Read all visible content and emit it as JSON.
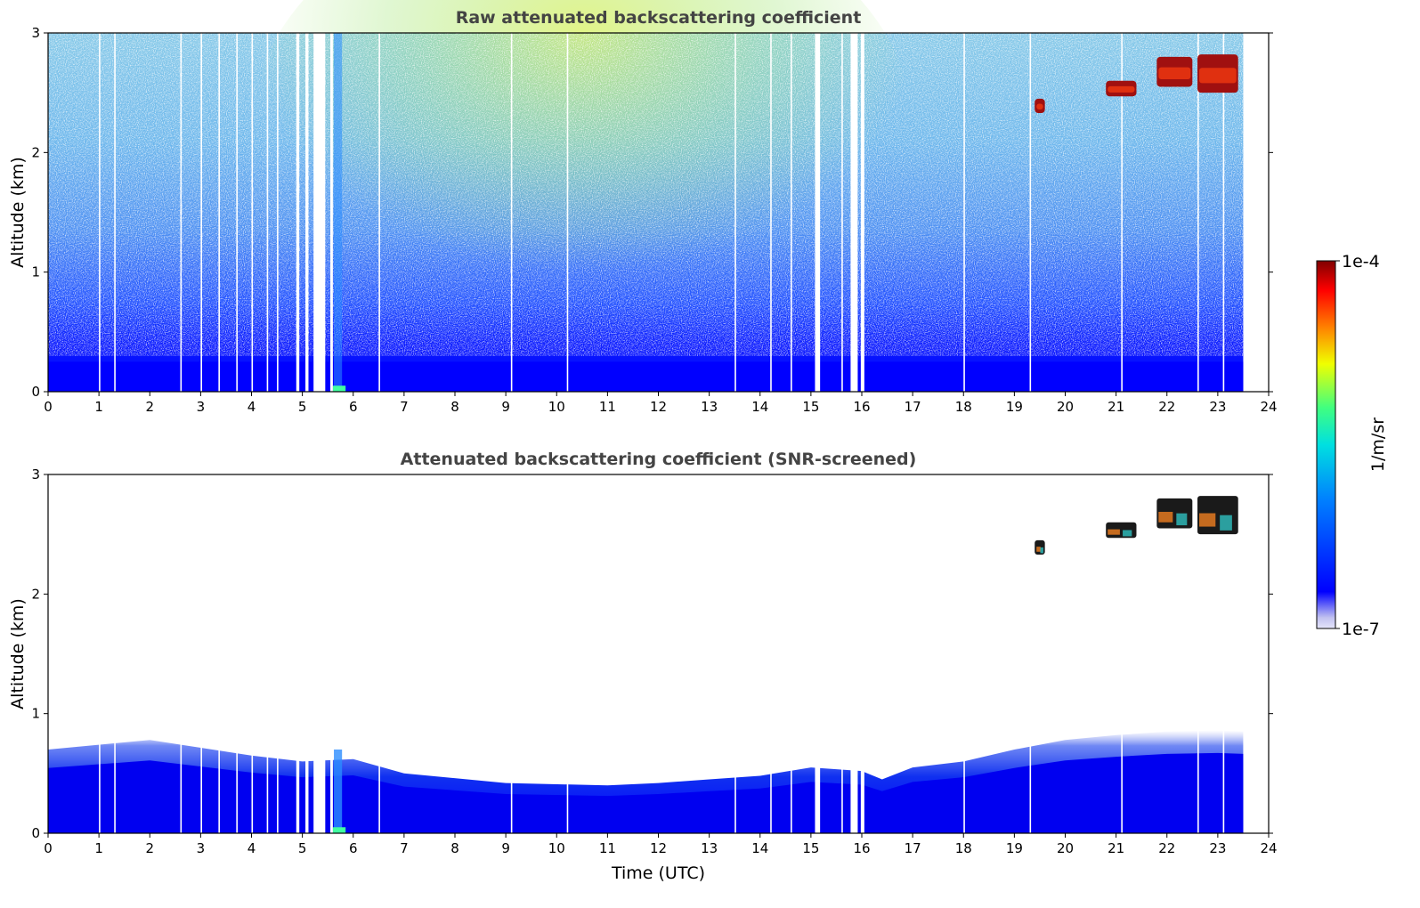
{
  "chart_data": [
    {
      "type": "heatmap",
      "title": "Raw attenuated backscattering coefficient",
      "xlabel": "",
      "ylabel": "Altitude (km)",
      "xlim": [
        0,
        24
      ],
      "ylim": [
        0,
        3
      ],
      "xticks": [
        "0",
        "1",
        "2",
        "3",
        "4",
        "5",
        "6",
        "7",
        "8",
        "9",
        "10",
        "11",
        "12",
        "13",
        "14",
        "15",
        "16",
        "17",
        "18",
        "19",
        "20",
        "21",
        "22",
        "23",
        "24"
      ],
      "yticks": [
        "0",
        "1",
        "2",
        "3"
      ],
      "data_end_time": 23.5,
      "no_data_gaps": [
        [
          4.88,
          4.94
        ],
        [
          5.06,
          5.12
        ],
        [
          5.22,
          5.45
        ],
        [
          5.55,
          5.6
        ],
        [
          15.08,
          15.18
        ],
        [
          15.78,
          15.92
        ],
        [
          15.98,
          16.05
        ]
      ],
      "cloud_layers": [
        {
          "t_start": 19.4,
          "t_end": 19.6,
          "alt_bottom": 2.33,
          "alt_top": 2.45
        },
        {
          "t_start": 20.8,
          "t_end": 21.4,
          "alt_bottom": 2.47,
          "alt_top": 2.6
        },
        {
          "t_start": 21.8,
          "t_end": 22.5,
          "alt_bottom": 2.55,
          "alt_top": 2.8
        },
        {
          "t_start": 22.6,
          "t_end": 23.4,
          "alt_bottom": 2.5,
          "alt_top": 2.82
        }
      ]
    },
    {
      "type": "heatmap",
      "title": "Attenuated backscattering coefficient (SNR-screened)",
      "xlabel": "Time (UTC)",
      "ylabel": "Altitude (km)",
      "xlim": [
        0,
        24
      ],
      "ylim": [
        0,
        3
      ],
      "xticks": [
        "0",
        "1",
        "2",
        "3",
        "4",
        "5",
        "6",
        "7",
        "8",
        "9",
        "10",
        "11",
        "12",
        "13",
        "14",
        "15",
        "16",
        "17",
        "18",
        "19",
        "20",
        "21",
        "22",
        "23",
        "24"
      ],
      "yticks": [
        "0",
        "1",
        "2",
        "3"
      ],
      "data_end_time": 23.5,
      "boundary_layer_top": [
        [
          0,
          0.7
        ],
        [
          2,
          0.78
        ],
        [
          4,
          0.65
        ],
        [
          5,
          0.6
        ],
        [
          6,
          0.62
        ],
        [
          7,
          0.5
        ],
        [
          9,
          0.42
        ],
        [
          11,
          0.4
        ],
        [
          12,
          0.42
        ],
        [
          13,
          0.45
        ],
        [
          14,
          0.48
        ],
        [
          15,
          0.55
        ],
        [
          16,
          0.52
        ],
        [
          16.4,
          0.45
        ],
        [
          17,
          0.55
        ],
        [
          18,
          0.6
        ],
        [
          19,
          0.7
        ],
        [
          20,
          0.78
        ],
        [
          21,
          0.82
        ],
        [
          22,
          0.85
        ],
        [
          23,
          0.86
        ],
        [
          23.5,
          0.85
        ]
      ],
      "cloud_layers": [
        {
          "t_start": 19.4,
          "t_end": 19.6,
          "alt_bottom": 2.33,
          "alt_top": 2.45
        },
        {
          "t_start": 20.8,
          "t_end": 21.4,
          "alt_bottom": 2.47,
          "alt_top": 2.6
        },
        {
          "t_start": 21.8,
          "t_end": 22.5,
          "alt_bottom": 2.55,
          "alt_top": 2.8
        },
        {
          "t_start": 22.6,
          "t_end": 23.4,
          "alt_bottom": 2.5,
          "alt_top": 2.82
        }
      ]
    }
  ],
  "colorbar": {
    "label": "1/m/sr",
    "max_label": "1e-4",
    "min_label": "1e-7",
    "colormap": "jet",
    "colors": [
      "#e6e6fa",
      "#0000ff",
      "#00bfff",
      "#00ffb0",
      "#f0ff00",
      "#ff8000",
      "#ff0000",
      "#800000"
    ]
  }
}
